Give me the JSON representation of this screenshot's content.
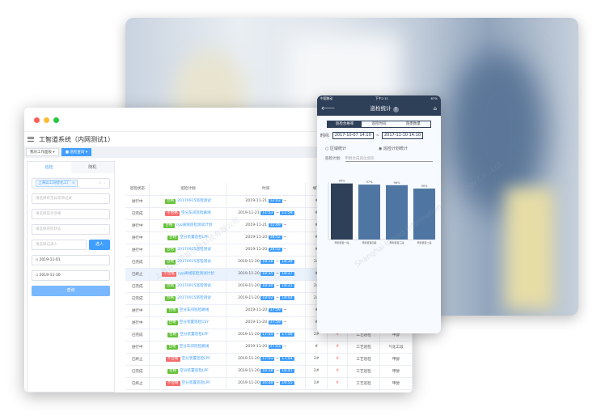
{
  "watermark": "上海异工同智信息科技有限公司 Shanghai Inroad Information Technology Co., Ltd.",
  "app": {
    "title": "工智道系统（内网测试1）",
    "tabs": [
      {
        "label": "我的工作面板"
      },
      {
        "label": "巡检查询"
      }
    ]
  },
  "filters": {
    "tabs": [
      "巡检",
      "随机"
    ],
    "factory": "上海异工同智化工厂",
    "abnormal_placeholder": "请选择有无异常项记录",
    "qualified_placeholder": "请选择是否合格",
    "status_placeholder": "请选择巡检状态",
    "recorder_placeholder": "请选择记录人",
    "select_person": "选人",
    "date_from": "2019-11-01",
    "date_to": "2019-11-30",
    "query": "查询"
  },
  "colors": {
    "primary": "#409eff",
    "pass": "#67c23a",
    "fail": "#f56c6c",
    "mobile_header": "#2e3f58"
  },
  "table": {
    "headers": [
      "巡检状态",
      "巡检计划",
      "时间",
      "填写",
      "",
      "",
      "",
      ""
    ],
    "rows": [
      [
        "进行中",
        "合格",
        "20170915巡检测试",
        "2019-11-21",
        "12:03",
        "",
        "#",
        "",
        "",
        ""
      ],
      [
        "已完成",
        "不合格",
        "空分车间巡检路线",
        "2019-11-21",
        "11:53",
        "11:58",
        "#",
        "",
        "",
        ""
      ],
      [
        "进行中",
        "合格",
        "cyp离线巡检测试计划",
        "2019-11-21",
        "11:49",
        "",
        "#",
        "",
        "",
        ""
      ],
      [
        "进行中",
        "合格",
        "空分装置巡检LPF",
        "2019-11-20",
        "18:52",
        "",
        "#",
        "",
        "",
        ""
      ],
      [
        "进行中",
        "合格",
        "20170915巡检测试",
        "2019-11-20",
        "18:52",
        "",
        "#",
        "",
        "",
        ""
      ],
      [
        "已完成",
        "合格",
        "20170915巡检测试",
        "2019-11-20",
        "18:18",
        "18:39",
        "2#",
        "",
        "",
        ""
      ],
      [
        "已终止",
        "不合格",
        "cyp离线巡检测试计划",
        "2019-11-20",
        "18:35",
        "18:37",
        "#",
        "",
        "",
        ""
      ],
      [
        "已完成",
        "合格",
        "20170915巡检测试",
        "2019-11-20",
        "18:30",
        "18:31",
        "2#",
        "",
        "",
        ""
      ],
      [
        "已完成",
        "合格",
        "20170915巡检测试",
        "2019-11-20",
        "18:02",
        "18:04",
        "2#",
        "",
        "",
        ""
      ],
      [
        "进行中",
        "合格",
        "空分车间巡检路线",
        "2019-11-20",
        "17:59",
        "",
        "#",
        "",
        "",
        ""
      ],
      [
        "进行中",
        "合格",
        "空分装置巡检CSY",
        "2019-11-20",
        "17:59",
        "",
        "#",
        "",
        "",
        ""
      ],
      [
        "已完成",
        "合格",
        "空分装置巡检LPF",
        "2019-11-20",
        "17:55",
        "17:56",
        "2#",
        "#",
        "工艺巡检",
        "甲醇"
      ],
      [
        "进行中",
        "合格",
        "空分车间巡检路线",
        "2019-11-20",
        "17:03",
        "",
        "#",
        "#",
        "工艺巡检",
        "气化工段"
      ],
      [
        "已终止",
        "不合格",
        "空分装置巡检LPF",
        "2019-11-20",
        "17:03",
        "17:04",
        "2#",
        "#",
        "工艺巡检",
        "甲醇"
      ],
      [
        "已完成",
        "合格",
        "空分装置巡检LPF",
        "2019-11-20",
        "16:38",
        "16:41",
        "2#",
        "#",
        "工艺巡检",
        "甲醇"
      ],
      [
        "已终止",
        "不合格",
        "空分装置巡检LPF",
        "2019-11-20",
        "16:48",
        "16:55",
        "2#",
        "#",
        "工艺巡检",
        "甲醇"
      ]
    ]
  },
  "mobile": {
    "carrier": "中国移动",
    "clock": "下午2:11",
    "battery": "67%",
    "title": "巡检统计",
    "segments": [
      "巡检合格率",
      "巡检时间",
      "隐患数量"
    ],
    "time_label": "时间:",
    "time_from": "2017-10-07 14:10",
    "time_sep": "~",
    "time_to": "2017-11-10 14:10",
    "radio_area": "区域统计",
    "radio_plan": "巡检计划统计",
    "plan_label": "巡检计划:",
    "plan_placeholder": "甲醇合成岗位巡检"
  },
  "chart_data": {
    "type": "bar",
    "categories": [
      "甲醇装置一段",
      "甲醇装置四段",
      "甲醇装置三段",
      "甲醇装置二段"
    ],
    "values": [
      99,
      97,
      96,
      90
    ],
    "labels": [
      "99%",
      "97%",
      "96%",
      "90%"
    ],
    "ylim": [
      0,
      100
    ],
    "colors": [
      "#2e3f58",
      "#4f76a3",
      "#4f76a3",
      "#4f76a3"
    ]
  }
}
